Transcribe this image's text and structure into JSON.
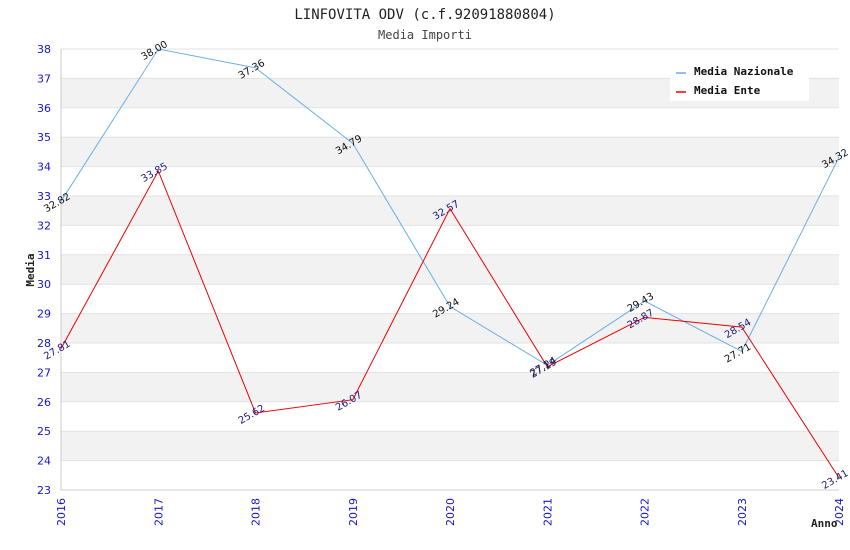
{
  "chart_data": {
    "type": "line",
    "title": "LINFOVITA ODV (c.f.92091880804)",
    "subtitle": "Media Importi",
    "xlabel": "Anno",
    "ylabel": "Media",
    "x": [
      "2016",
      "2017",
      "2018",
      "2019",
      "2020",
      "2021",
      "2022",
      "2023",
      "2024"
    ],
    "ylim": [
      23,
      38
    ],
    "yticks": [
      "23",
      "24",
      "25",
      "26",
      "27",
      "28",
      "29",
      "30",
      "31",
      "32",
      "33",
      "34",
      "35",
      "36",
      "37",
      "38"
    ],
    "grid": "horizontal bands",
    "legend_position": "top-right",
    "series": [
      {
        "name": "Media Nazionale",
        "color": "#6aaee6",
        "label_color": "#111111",
        "values": [
          32.82,
          38.0,
          37.36,
          34.79,
          29.24,
          27.24,
          29.43,
          27.71,
          34.32
        ],
        "labels": [
          "32.82",
          "38.00",
          "37.36",
          "34.79",
          "29.24",
          "27.24",
          "29.43",
          "27.71",
          "34.32"
        ]
      },
      {
        "name": "Media Ente",
        "color": "#ee0000",
        "label_color": "#1a1a80",
        "values": [
          27.81,
          33.85,
          25.62,
          26.07,
          32.57,
          27.19,
          28.87,
          28.54,
          23.41
        ],
        "labels": [
          "27.81",
          "33.85",
          "25.62",
          "26.07",
          "32.57",
          "27.19",
          "28.87",
          "28.54",
          "23.41"
        ]
      }
    ]
  }
}
